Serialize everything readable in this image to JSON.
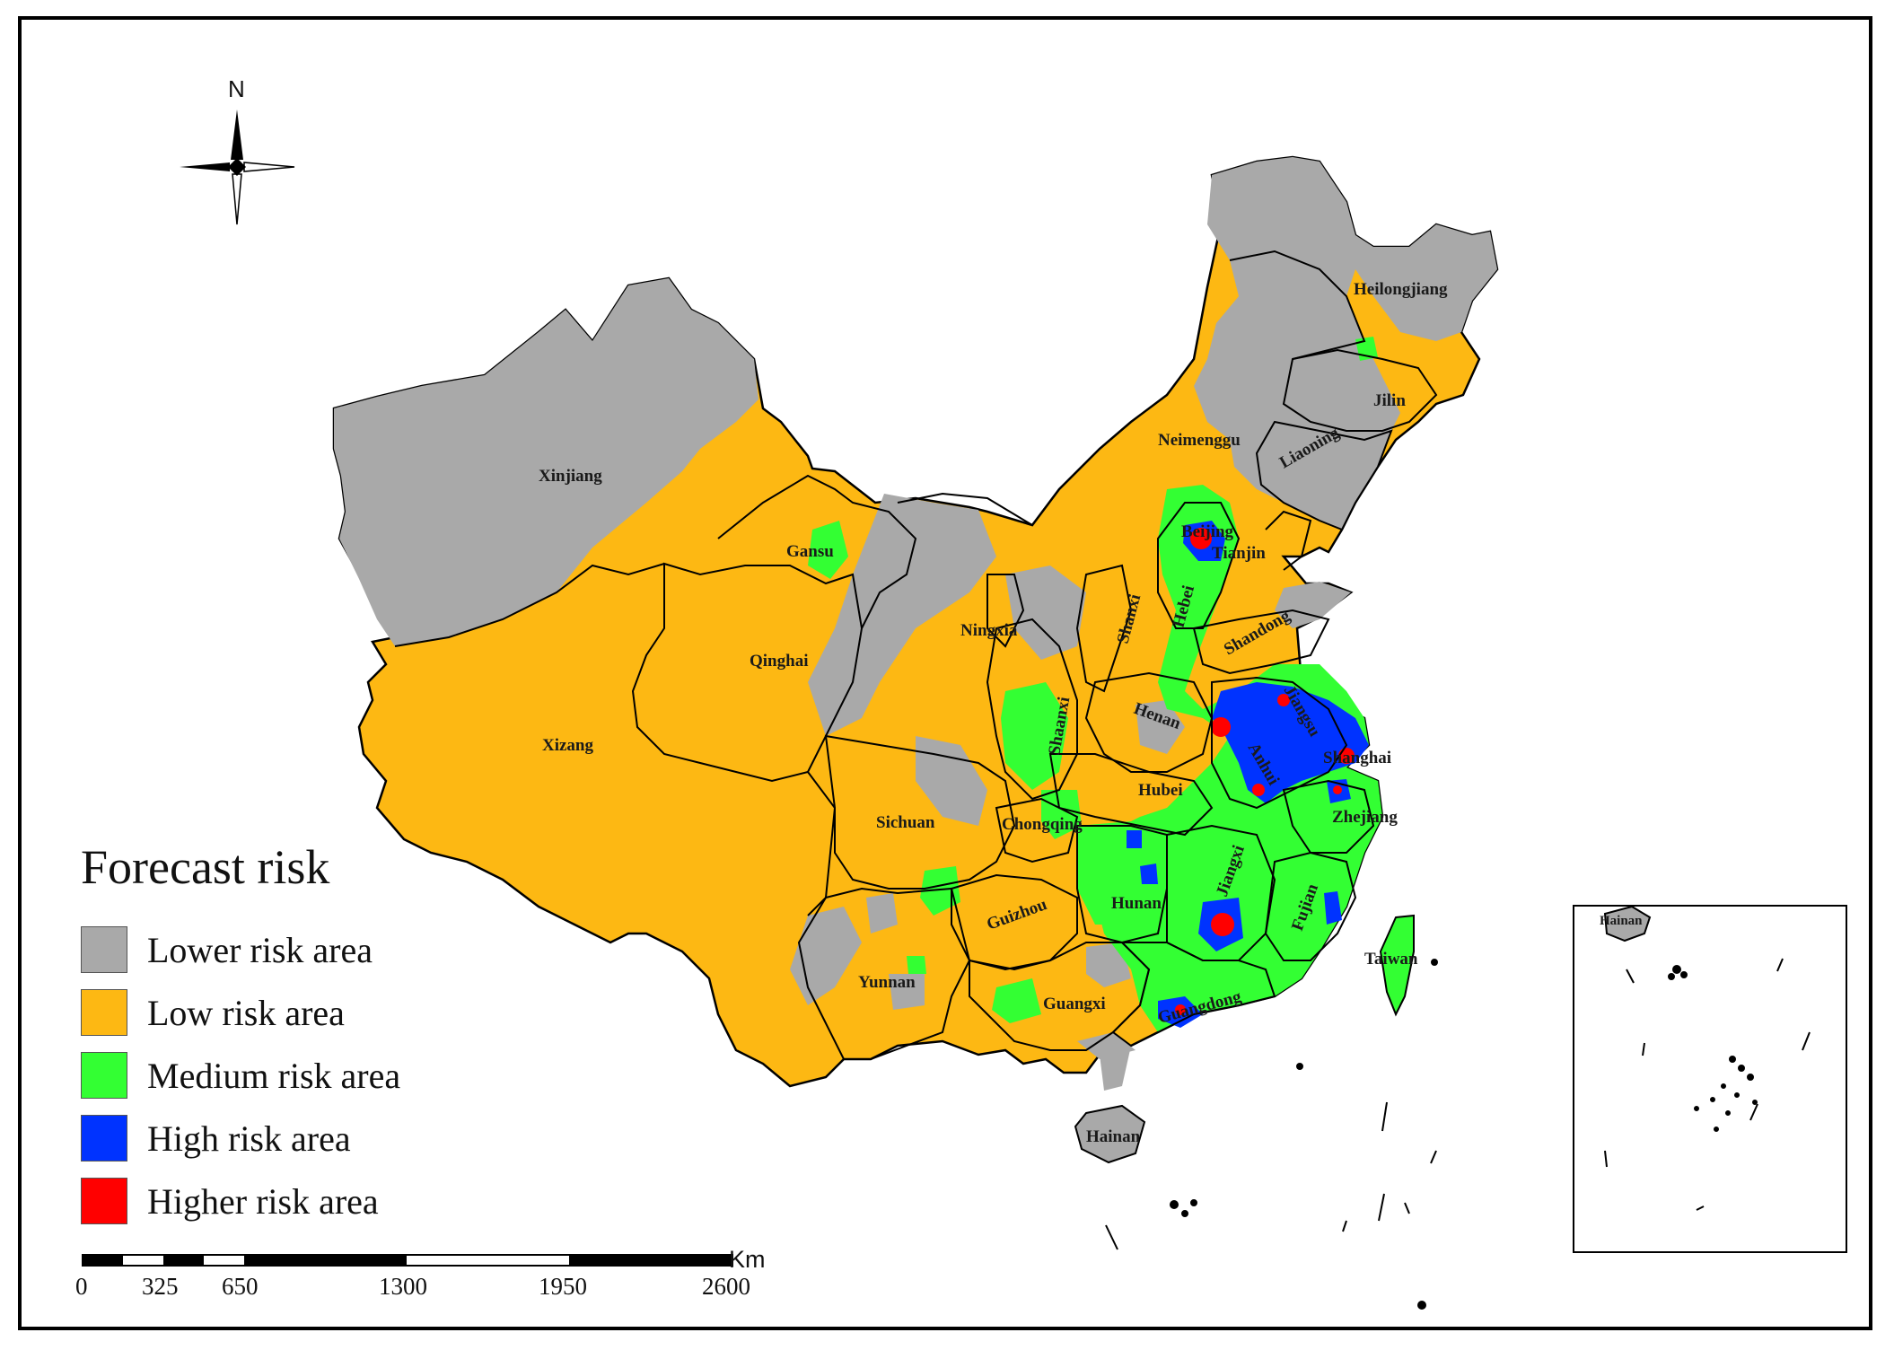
{
  "north_label": "N",
  "legend": {
    "title": "Forecast risk",
    "items": [
      {
        "label": "Lower risk area",
        "color": "#a9a9a9"
      },
      {
        "label": "Low risk area",
        "color": "#fdb813"
      },
      {
        "label": "Medium risk area",
        "color": "#33ff33"
      },
      {
        "label": "High risk area",
        "color": "#0033ff"
      },
      {
        "label": "Higher risk area",
        "color": "#ff0000"
      }
    ]
  },
  "scale_bar": {
    "unit": "Km",
    "ticks": [
      "0",
      "325",
      "650",
      "1300",
      "1950",
      "2600"
    ]
  },
  "provinces": {
    "xinjiang": "Xinjiang",
    "xizang": "Xizang",
    "qinghai": "Qinghai",
    "gansu": "Gansu",
    "neimenggu": "Neimenggu",
    "heilongjiang": "Heilongjiang",
    "jilin": "Jilin",
    "liaoning": "Liaoning",
    "beijing": "Beijing",
    "tianjin": "Tianjin",
    "hebei": "Hebei",
    "shanxi": "Shanxi",
    "shandong": "Shandong",
    "ningxia": "Ningxia",
    "shaanxi": "Shaanxi",
    "henan": "Henan",
    "jiangsu": "Jiangsu",
    "anhui": "Anhui",
    "shanghai": "Shanghai",
    "hubei": "Hubei",
    "sichuan": "Sichuan",
    "chongqing": "Chongqing",
    "zhejiang": "Zhejiang",
    "hunan": "Hunan",
    "jiangxi": "Jiangxi",
    "guizhou": "Guizhou",
    "fujian": "Fujian",
    "taiwan": "Taiwan",
    "yunnan": "Yunnan",
    "guangxi": "Guangxi",
    "guangdong": "Guangdong",
    "hainan": "Hainan",
    "inset_hainan": "Hainan"
  }
}
